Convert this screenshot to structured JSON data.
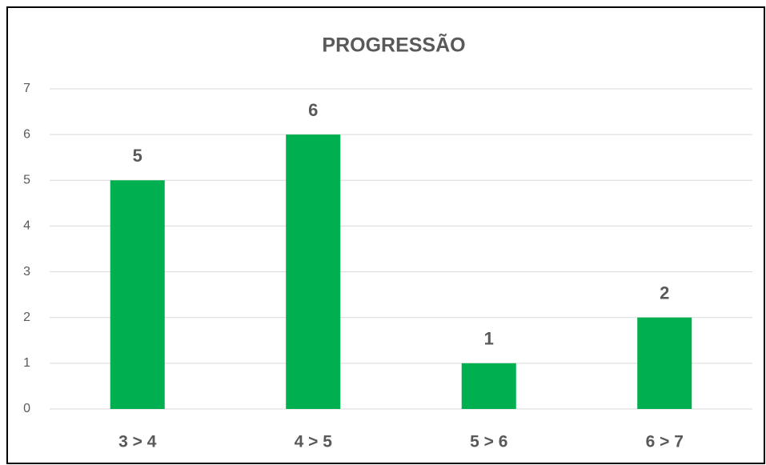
{
  "chart_data": {
    "type": "bar",
    "title": "PROGRESSÃO",
    "categories": [
      "3 > 4",
      "4 > 5",
      "5 > 6",
      "6 > 7"
    ],
    "values": [
      5,
      6,
      1,
      2
    ],
    "color": "#00b050",
    "ylim": [
      0,
      7
    ],
    "yticks": [
      0,
      1,
      2,
      3,
      4,
      5,
      6,
      7
    ],
    "grid": true
  }
}
